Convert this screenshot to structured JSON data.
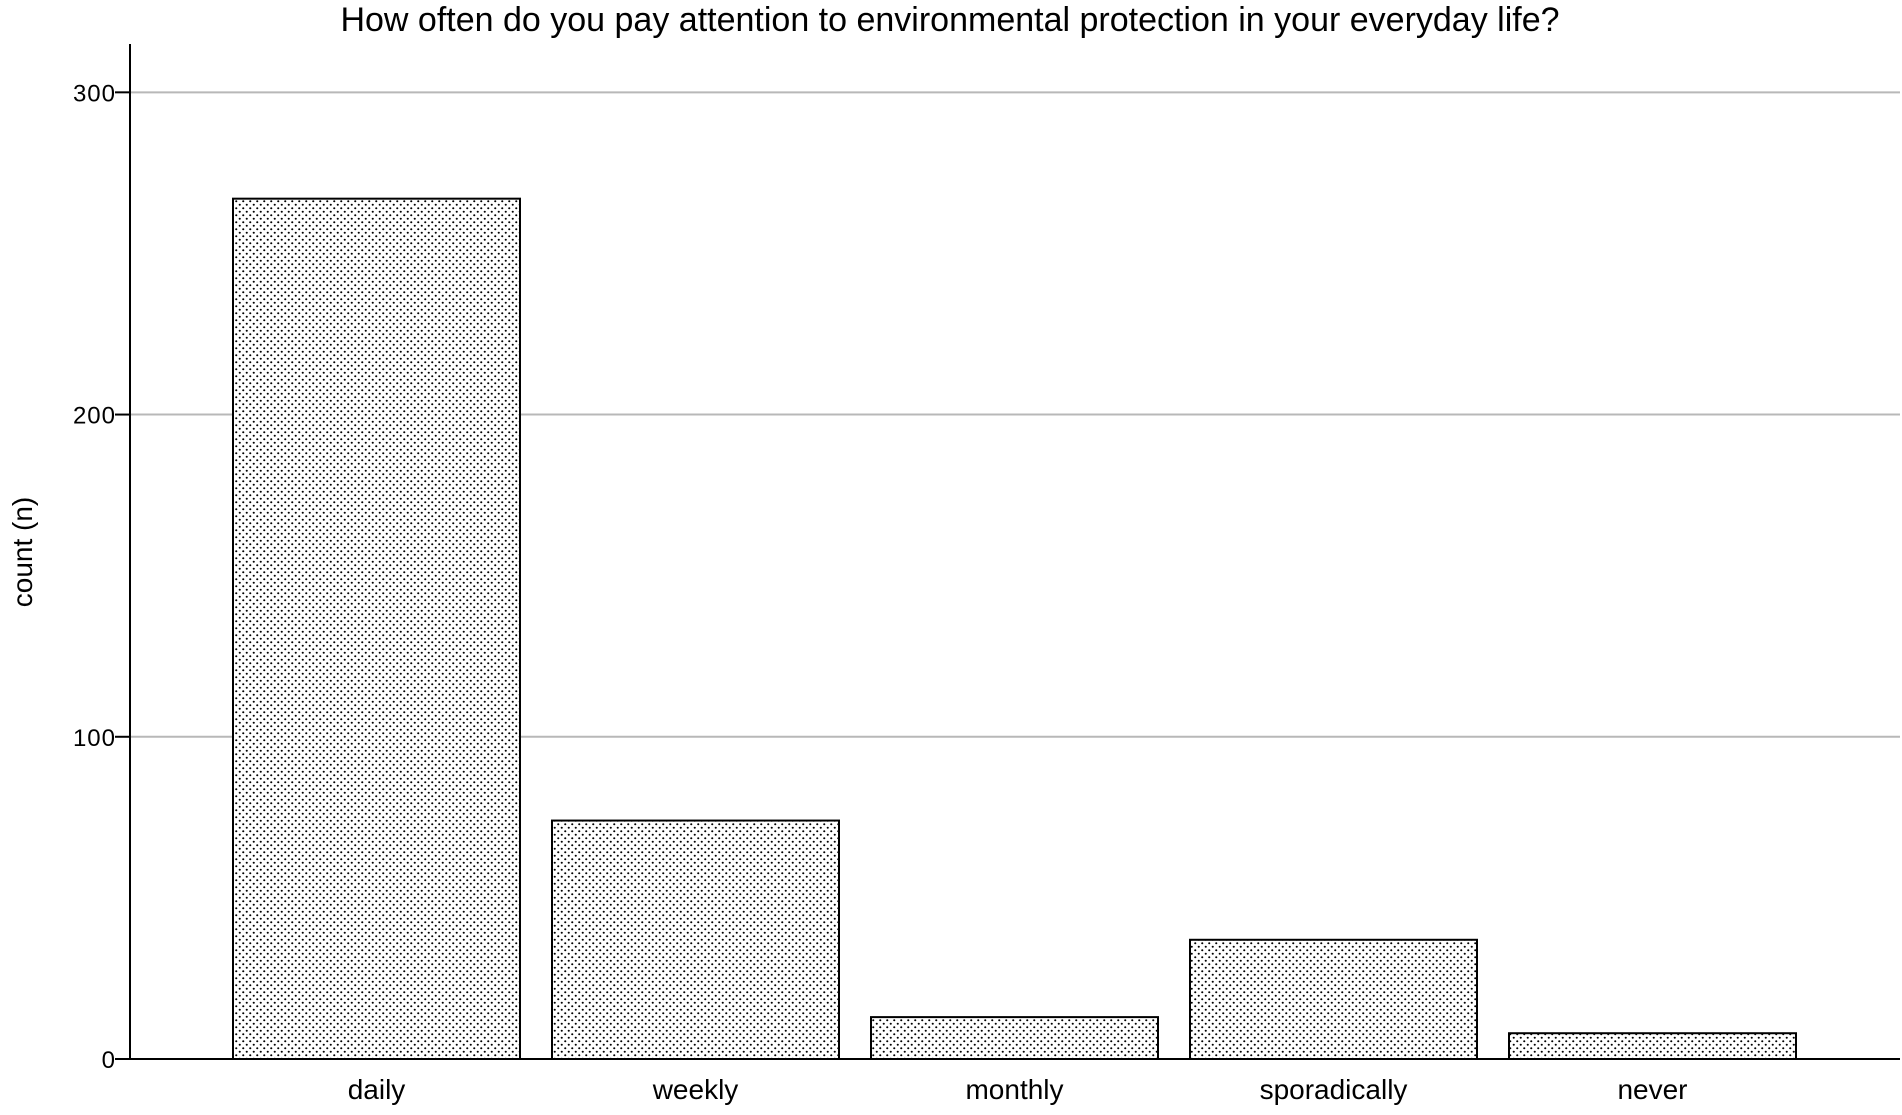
{
  "chart_data": {
    "type": "bar",
    "title": "How often do you pay attention to environmental protection in your everyday life?",
    "xlabel": "",
    "ylabel": "count (n)",
    "categories": [
      "daily",
      "weekly",
      "monthly",
      "sporadically",
      "never"
    ],
    "values": [
      267,
      74,
      13,
      37,
      8
    ],
    "ylim": [
      0,
      315
    ],
    "yticks": [
      0,
      100,
      200,
      300
    ],
    "grid": "horizontal",
    "bar_fill": "dotted",
    "colors": {
      "bar_fill": "#ffffff",
      "bar_dots": "#000000",
      "bar_edge": "#000000",
      "grid": "#b8b8b8",
      "axis": "#000000"
    }
  }
}
